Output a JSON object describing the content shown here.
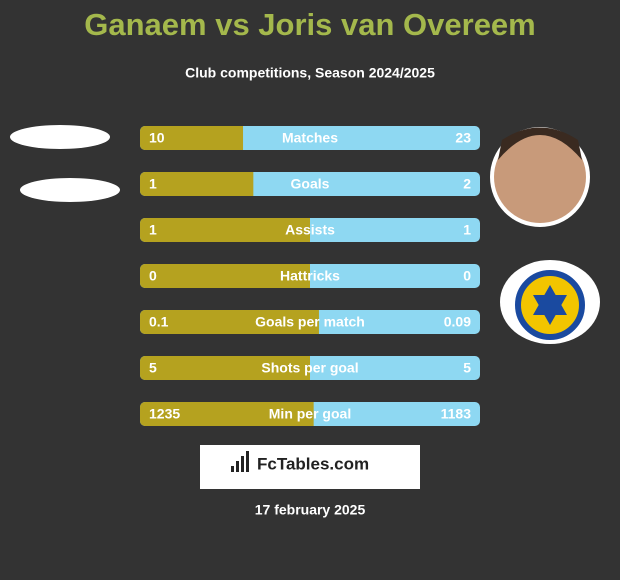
{
  "title": "Ganaem vs Joris van Overeem",
  "subtitle": "Club competitions, Season 2024/2025",
  "rows": [
    {
      "label": "Matches",
      "left": 10,
      "right": 23
    },
    {
      "label": "Goals",
      "left": 1,
      "right": 2
    },
    {
      "label": "Assists",
      "left": 1,
      "right": 1
    },
    {
      "label": "Hattricks",
      "left": 0,
      "right": 0
    },
    {
      "label": "Goals per match",
      "left": 0.1,
      "right": 0.09
    },
    {
      "label": "Shots per goal",
      "left": 5,
      "right": 5
    },
    {
      "label": "Min per goal",
      "left": 1235,
      "right": 1183
    }
  ],
  "brand": "FcTables.com",
  "date": "17 february 2025"
}
